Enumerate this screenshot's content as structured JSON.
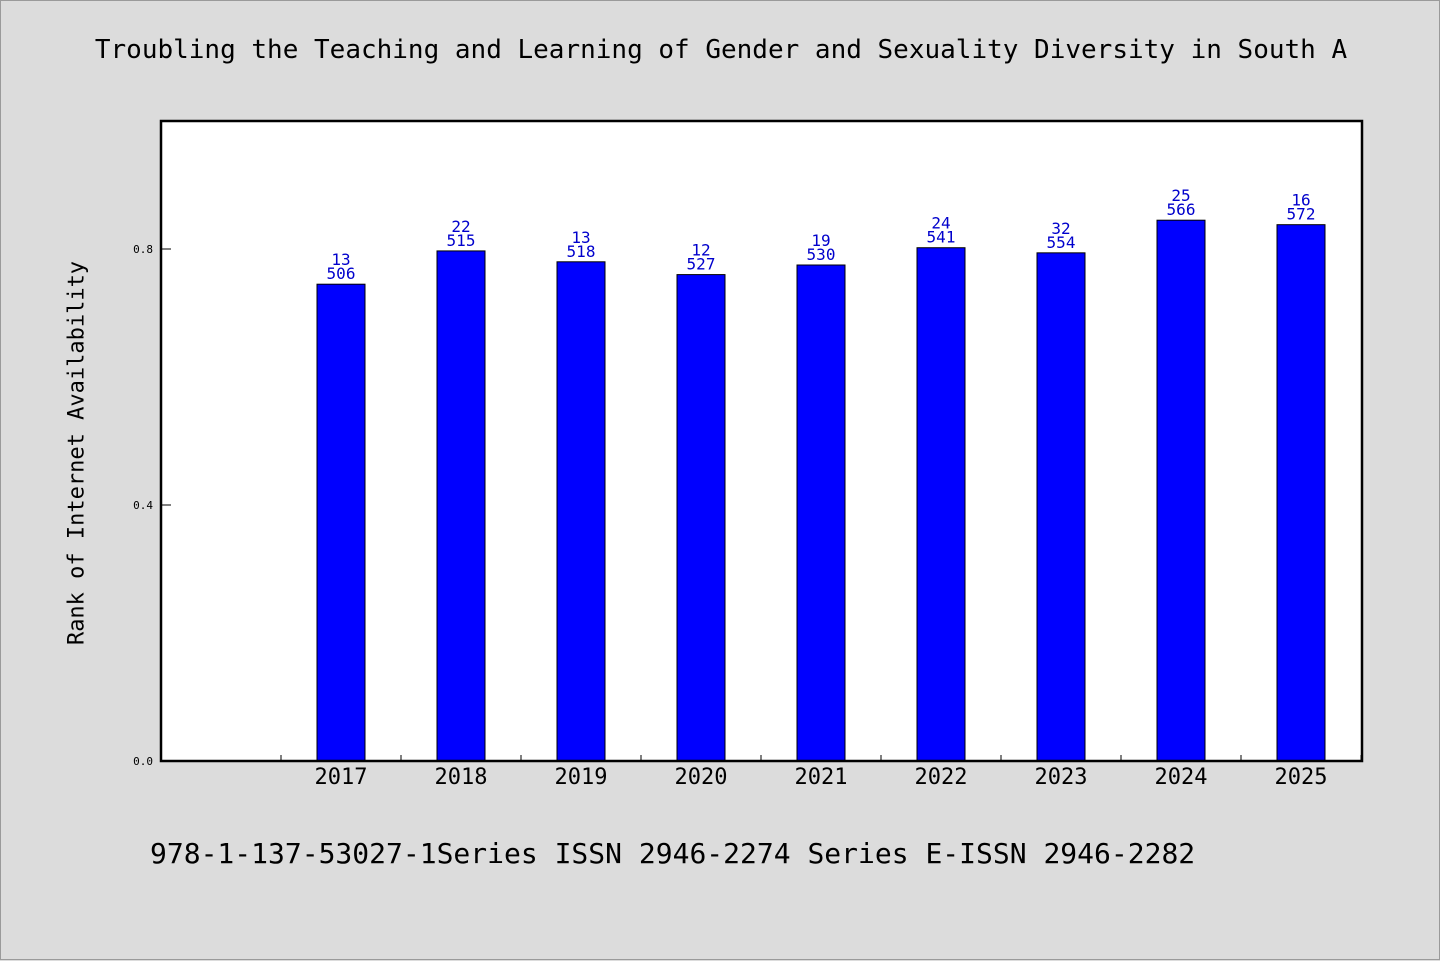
{
  "title": "Troubling the Teaching and Learning of Gender and Sexuality Diversity in South A",
  "footer": "978-1-137-53027-1Series ISSN 2946-2274 Series E-ISSN 2946-2282",
  "colors": {
    "bar": "#0000ff",
    "bar_label": "#0000cc",
    "plot_bg": "#ffffff",
    "page_bg": "#dcdcdc"
  },
  "chart_data": {
    "type": "bar",
    "title": "Troubling the Teaching and Learning of Gender and Sexuality Diversity in South A",
    "xlabel": "",
    "ylabel": "Rank of Internet Availability",
    "categories": [
      "2017",
      "2018",
      "2019",
      "2020",
      "2021",
      "2022",
      "2023",
      "2024",
      "2025"
    ],
    "values": [
      0.745,
      0.797,
      0.78,
      0.76,
      0.775,
      0.802,
      0.794,
      0.845,
      0.838
    ],
    "label_top": [
      "13",
      "22",
      "13",
      "12",
      "19",
      "24",
      "32",
      "25",
      "16"
    ],
    "label_bottom": [
      "506",
      "515",
      "518",
      "527",
      "530",
      "541",
      "554",
      "566",
      "572"
    ],
    "yticks": [
      "0.0",
      "0.4",
      "0.8"
    ],
    "ylim": [
      0,
      1.0
    ],
    "grid": false,
    "legend": "none"
  }
}
